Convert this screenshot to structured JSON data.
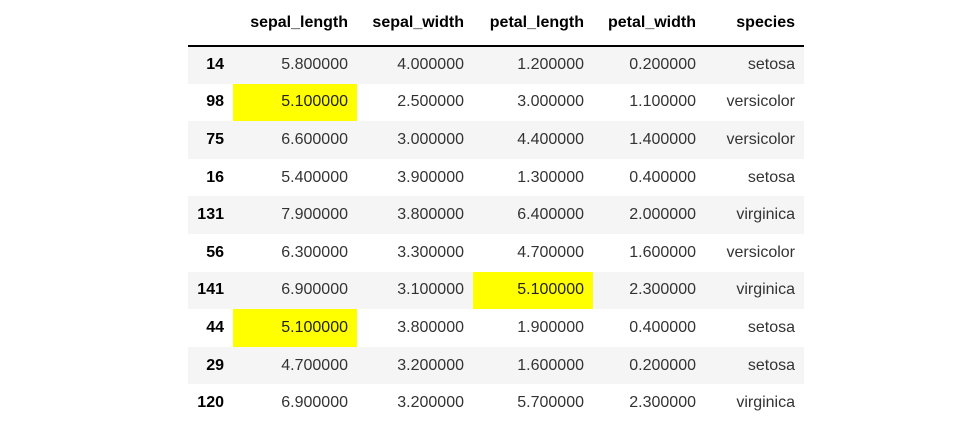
{
  "columns": [
    {
      "key": "index",
      "label": ""
    },
    {
      "key": "sepal_length",
      "label": "sepal_length"
    },
    {
      "key": "sepal_width",
      "label": "sepal_width"
    },
    {
      "key": "petal_length",
      "label": "petal_length"
    },
    {
      "key": "petal_width",
      "label": "petal_width"
    },
    {
      "key": "species",
      "label": "species"
    }
  ],
  "rows": [
    {
      "index": "14",
      "sepal_length": "5.800000",
      "sepal_width": "4.000000",
      "petal_length": "1.200000",
      "petal_width": "0.200000",
      "species": "setosa",
      "highlight": []
    },
    {
      "index": "98",
      "sepal_length": "5.100000",
      "sepal_width": "2.500000",
      "petal_length": "3.000000",
      "petal_width": "1.100000",
      "species": "versicolor",
      "highlight": [
        "sepal_length"
      ]
    },
    {
      "index": "75",
      "sepal_length": "6.600000",
      "sepal_width": "3.000000",
      "petal_length": "4.400000",
      "petal_width": "1.400000",
      "species": "versicolor",
      "highlight": []
    },
    {
      "index": "16",
      "sepal_length": "5.400000",
      "sepal_width": "3.900000",
      "petal_length": "1.300000",
      "petal_width": "0.400000",
      "species": "setosa",
      "highlight": []
    },
    {
      "index": "131",
      "sepal_length": "7.900000",
      "sepal_width": "3.800000",
      "petal_length": "6.400000",
      "petal_width": "2.000000",
      "species": "virginica",
      "highlight": []
    },
    {
      "index": "56",
      "sepal_length": "6.300000",
      "sepal_width": "3.300000",
      "petal_length": "4.700000",
      "petal_width": "1.600000",
      "species": "versicolor",
      "highlight": []
    },
    {
      "index": "141",
      "sepal_length": "6.900000",
      "sepal_width": "3.100000",
      "petal_length": "5.100000",
      "petal_width": "2.300000",
      "species": "virginica",
      "highlight": [
        "petal_length"
      ]
    },
    {
      "index": "44",
      "sepal_length": "5.100000",
      "sepal_width": "3.800000",
      "petal_length": "1.900000",
      "petal_width": "0.400000",
      "species": "setosa",
      "highlight": [
        "sepal_length"
      ]
    },
    {
      "index": "29",
      "sepal_length": "4.700000",
      "sepal_width": "3.200000",
      "petal_length": "1.600000",
      "petal_width": "0.200000",
      "species": "setosa",
      "highlight": []
    },
    {
      "index": "120",
      "sepal_length": "6.900000",
      "sepal_width": "3.200000",
      "petal_length": "5.700000",
      "petal_width": "2.300000",
      "species": "virginica",
      "highlight": []
    }
  ],
  "colors": {
    "highlight": "#ffff00",
    "row_stripe": "#f5f5f5",
    "header_rule": "#000000"
  }
}
